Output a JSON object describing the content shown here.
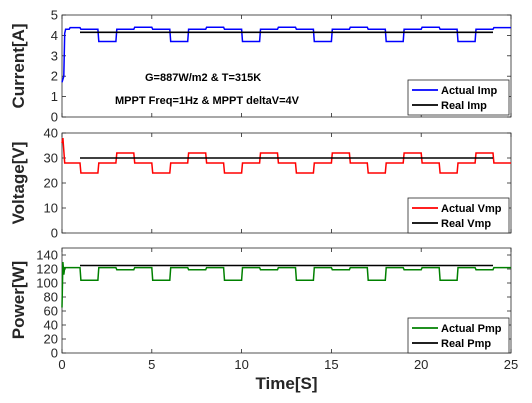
{
  "chart_data": [
    {
      "type": "line",
      "ylabel": "Current[A]",
      "xlim": [
        0,
        25
      ],
      "ylim": [
        0,
        5
      ],
      "yticks": [
        0,
        1,
        2,
        3,
        4,
        5
      ],
      "xticks": [
        0,
        5,
        10,
        15,
        20,
        25
      ],
      "show_xtick_labels": false,
      "grid": false,
      "legend_position": "bottom-right",
      "annotations": [
        "G=887W/m2 & T=315K",
        "MPPT Freq=1Hz & MPPT deltaV=4V"
      ],
      "series": [
        {
          "name": "Actual Imp",
          "color": "#0000ff",
          "x": [
            0,
            0.1,
            0.15,
            0.2,
            0.4,
            0.45,
            1,
            1.05,
            2,
            2.05,
            3,
            3.05,
            4,
            4.05,
            5,
            5.05,
            6,
            6.05,
            7,
            7.05,
            8,
            8.05,
            9,
            9.05,
            10,
            10.05,
            11,
            11.05,
            12,
            12.05,
            13,
            13.05,
            14,
            14.05,
            15,
            15.05,
            16,
            16.05,
            17,
            17.05,
            18,
            18.05,
            19,
            19.05,
            20,
            20.05,
            21,
            21.05,
            22,
            22.05,
            23,
            23.05,
            24,
            24.05,
            25
          ],
          "y": [
            1.7,
            2.0,
            4.1,
            4.3,
            4.3,
            4.38,
            4.38,
            4.3,
            4.3,
            3.7,
            3.7,
            4.3,
            4.3,
            4.4,
            4.4,
            4.3,
            4.3,
            3.7,
            3.7,
            4.3,
            4.3,
            4.4,
            4.4,
            4.3,
            4.3,
            3.7,
            3.7,
            4.3,
            4.3,
            4.4,
            4.4,
            4.3,
            4.3,
            3.7,
            3.7,
            4.3,
            4.3,
            4.4,
            4.4,
            4.3,
            4.3,
            3.7,
            3.7,
            4.3,
            4.3,
            4.4,
            4.4,
            4.3,
            4.3,
            3.7,
            3.7,
            4.3,
            4.3,
            4.38,
            4.38
          ]
        },
        {
          "name": "Real Imp",
          "color": "#000000",
          "x": [
            1,
            24
          ],
          "y": [
            4.15,
            4.15
          ]
        }
      ]
    },
    {
      "type": "line",
      "ylabel": "Voltage[V]",
      "xlim": [
        0,
        25
      ],
      "ylim": [
        0,
        40
      ],
      "yticks": [
        0,
        10,
        20,
        30,
        40
      ],
      "xticks": [
        0,
        5,
        10,
        15,
        20,
        25
      ],
      "show_xtick_labels": false,
      "grid": false,
      "legend_position": "bottom-right",
      "series": [
        {
          "name": "Actual Vmp",
          "color": "#ff0000",
          "x": [
            0,
            0.05,
            0.1,
            0.15,
            0.2,
            1,
            1.05,
            2,
            2.05,
            3,
            3.05,
            4,
            4.05,
            5,
            5.05,
            6,
            6.05,
            7,
            7.05,
            8,
            8.05,
            9,
            9.05,
            10,
            10.05,
            11,
            11.05,
            12,
            12.05,
            13,
            13.05,
            14,
            14.05,
            15,
            15.05,
            16,
            16.05,
            17,
            17.05,
            18,
            18.05,
            19,
            19.05,
            20,
            20.05,
            21,
            21.05,
            22,
            22.05,
            23,
            23.05,
            24,
            24.05,
            25
          ],
          "y": [
            36,
            38,
            33,
            28,
            28,
            28,
            24,
            24,
            28,
            28,
            32,
            32,
            28,
            28,
            24,
            24,
            28,
            28,
            32,
            32,
            28,
            28,
            24,
            24,
            28,
            28,
            32,
            32,
            28,
            28,
            24,
            24,
            28,
            28,
            32,
            32,
            28,
            28,
            24,
            24,
            28,
            28,
            32,
            32,
            28,
            28,
            24,
            24,
            28,
            28,
            32,
            32,
            28,
            28
          ]
        },
        {
          "name": "Real Vmp",
          "color": "#000000",
          "x": [
            1,
            24
          ],
          "y": [
            30,
            30
          ]
        }
      ]
    },
    {
      "type": "line",
      "ylabel": "Power[W]",
      "xlabel": "Time[S]",
      "xlim": [
        0,
        25
      ],
      "ylim": [
        0,
        150
      ],
      "yticks": [
        0,
        20,
        40,
        60,
        80,
        100,
        120,
        140
      ],
      "xticks": [
        0,
        5,
        10,
        15,
        20,
        25
      ],
      "show_xtick_labels": true,
      "grid": false,
      "legend_position": "bottom-right",
      "series": [
        {
          "name": "Actual Pmp",
          "color": "#008000",
          "x": [
            0,
            0.05,
            0.1,
            0.15,
            0.3,
            1,
            1.05,
            2,
            2.05,
            3,
            3.05,
            4,
            4.05,
            5,
            5.05,
            6,
            6.05,
            7,
            7.05,
            8,
            8.05,
            9,
            9.05,
            10,
            10.05,
            11,
            11.05,
            12,
            12.05,
            13,
            13.05,
            14,
            14.05,
            15,
            15.05,
            16,
            16.05,
            17,
            17.05,
            18,
            18.05,
            19,
            19.05,
            20,
            20.05,
            21,
            21.05,
            22,
            22.05,
            23,
            23.05,
            24,
            24.05,
            25
          ],
          "y": [
            65,
            130,
            112,
            122,
            122,
            122,
            104,
            104,
            122,
            122,
            119,
            119,
            122,
            122,
            104,
            104,
            122,
            122,
            119,
            119,
            122,
            122,
            104,
            104,
            122,
            122,
            119,
            119,
            122,
            122,
            104,
            104,
            122,
            122,
            119,
            119,
            122,
            122,
            104,
            104,
            122,
            122,
            119,
            119,
            122,
            122,
            104,
            104,
            122,
            122,
            119,
            119,
            122,
            122
          ]
        },
        {
          "name": "Real Pmp",
          "color": "#000000",
          "x": [
            1,
            24
          ],
          "y": [
            125,
            125
          ]
        }
      ]
    }
  ]
}
